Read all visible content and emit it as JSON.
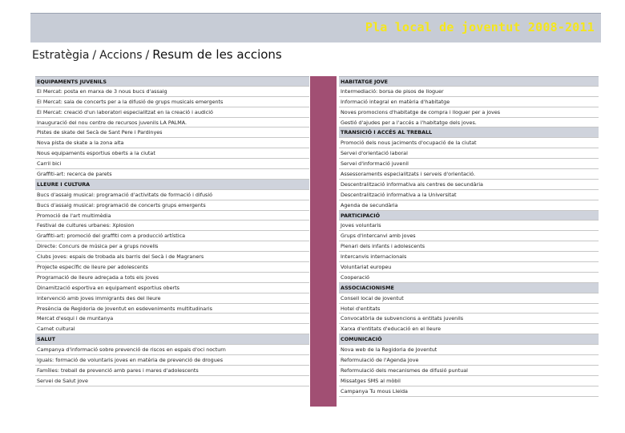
{
  "banner": {
    "title": "Pla local de joventut 2008-2011"
  },
  "breadcrumb": {
    "part1": "Estratègia",
    "sep1": "/",
    "part2": "Accions",
    "sep2": "/",
    "part3": "Resum de les accions"
  },
  "left_rows": [
    {
      "text": "EQUIPAMENTS JUVENILS",
      "header": true
    },
    {
      "text": "El Mercat: posta en marxa de 3 nous bucs d'assaig",
      "header": false
    },
    {
      "text": "El Mercat: sala de concerts per a la difusió de grups musicals emergents",
      "header": false
    },
    {
      "text": "El Mercat: creació d'un laboratori especialitzat en la creació i audició",
      "header": false
    },
    {
      "text": "Inauguració del nou centre de recursos juvenils LA PALMA.",
      "header": false
    },
    {
      "text": "Pistes de skate del Secà de Sant Pere i Pardinyes",
      "header": false
    },
    {
      "text": "Nova pista de skate a la zona alta",
      "header": false
    },
    {
      "text": "Nous equipaments esportius oberts a la ciutat",
      "header": false
    },
    {
      "text": "Carril bici",
      "header": false
    },
    {
      "text": "Graffiti-art: recerca de parets",
      "header": false
    },
    {
      "text": "LLEURE I CULTURA",
      "header": true
    },
    {
      "text": "Bucs d'assaig musical: programació d'activitats de formació i difusió",
      "header": false
    },
    {
      "text": "Bucs d'assaig musical: programació de concerts grups emergents",
      "header": false
    },
    {
      "text": "Promoció de l'art multimèdia",
      "header": false
    },
    {
      "text": "Festival de cultures urbanes: Xplosion",
      "header": false
    },
    {
      "text": "Graffiti-art: promoció del graffiti com a producció artística",
      "header": false
    },
    {
      "text": "Directe: Concurs de música per a grups novells",
      "header": false
    },
    {
      "text": "Clubs joves: espais de trobada als barris del Secà i de Magraners",
      "header": false
    },
    {
      "text": "Projecte específic de lleure per adolescents",
      "header": false
    },
    {
      "text": "Programació de lleure adreçada a tots els joves",
      "header": false
    },
    {
      "text": "Dinamització esportiva en equipament esportius oberts",
      "header": false
    },
    {
      "text": "Intervenció amb joves immigrants des del lleure",
      "header": false
    },
    {
      "text": "Presència de Regidoria de Joventut en esdeveniments multitudinaris",
      "header": false
    },
    {
      "text": "Mercat d'esqui i de muntanya",
      "header": false
    },
    {
      "text": "Carnet cultural",
      "header": false
    },
    {
      "text": "SALUT",
      "header": true
    },
    {
      "text": "Campanya d'informació sobre prevenció de riscos en espais d'oci nocturn",
      "header": false
    },
    {
      "text": "Iguals: formació de voluntaris joves en matèria de prevenció de drogues",
      "header": false
    },
    {
      "text": "Famílies: treball de prevenció amb pares i mares d'adolescents",
      "header": false
    },
    {
      "text": "Servei de Salut jove",
      "header": false
    }
  ],
  "right_rows": [
    {
      "text": "HABITATGE JOVE",
      "header": true
    },
    {
      "text": "Intermediació: borsa de pisos de lloguer",
      "header": false
    },
    {
      "text": "Informació integral en matèria d'habitatge",
      "header": false
    },
    {
      "text": "Noves promocions d'habitatge de compra i lloguer per a joves",
      "header": false
    },
    {
      "text": "Gestió d'ajudes per a l'accés a l'habitatge dels joves.",
      "header": false
    },
    {
      "text": "TRANSICIÓ I ACCÉS AL TREBALL",
      "header": true
    },
    {
      "text": "Promoció dels nous jaciments d'ocupació de la ciutat",
      "header": false
    },
    {
      "text": "Servei d'orientació laboral",
      "header": false
    },
    {
      "text": "Servei d'informació juvenil",
      "header": false
    },
    {
      "text": "Assessoraments especialitzats i serveis d'orientació.",
      "header": false
    },
    {
      "text": "Descentralització informativa als centres de secundària",
      "header": false
    },
    {
      "text": "Descentralització informativa a la Universitat",
      "header": false
    },
    {
      "text": "Agenda de secundària",
      "header": false
    },
    {
      "text": "PARTICIPACIÓ",
      "header": true
    },
    {
      "text": "Joves voluntaris",
      "header": false
    },
    {
      "text": "Grups d'intercanvi amb joves",
      "header": false
    },
    {
      "text": "Plenari dels infants i adolescents",
      "header": false
    },
    {
      "text": "Intercanvis internacionals",
      "header": false
    },
    {
      "text": "Voluntariat europeu",
      "header": false
    },
    {
      "text": "Cooperació",
      "header": false
    },
    {
      "text": "ASSOCIACIONISME",
      "header": true
    },
    {
      "text": "Consell local de joventut",
      "header": false
    },
    {
      "text": "Hotel d'entitats",
      "header": false
    },
    {
      "text": "Convocatòria de subvencions a entitats juvenils",
      "header": false
    },
    {
      "text": "Xarxa d'entitats d'educació en el lleure",
      "header": false
    },
    {
      "text": "COMUNICACIÓ",
      "header": true
    },
    {
      "text": "Nova web de la Regidoria de Joventut",
      "header": false
    },
    {
      "text": "Reformulació de l'Agenda Jove",
      "header": false
    },
    {
      "text": "Reformulació dels mecanismes de difusió puntual",
      "header": false
    },
    {
      "text": "Missatges SMS al mòbil",
      "header": false
    },
    {
      "text": "Campanya Tu mous Lleida",
      "header": false
    }
  ]
}
